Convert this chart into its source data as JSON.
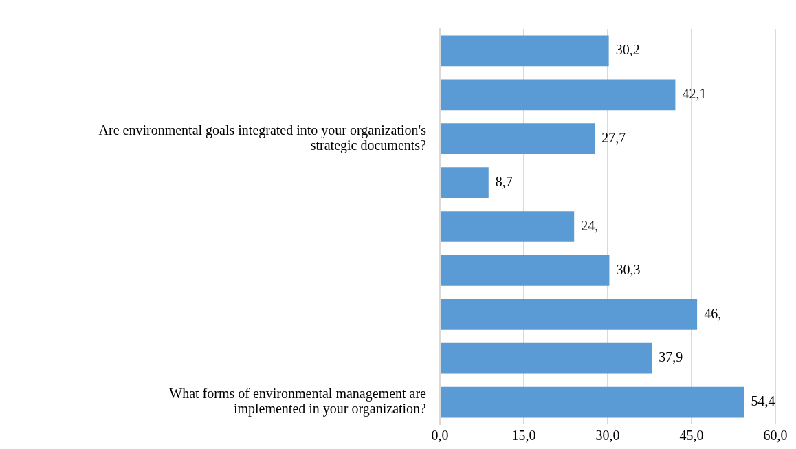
{
  "chart_data": {
    "type": "bar",
    "orientation": "horizontal",
    "categories": [
      null,
      null,
      "Are environmental goals integrated into your organization's strategic documents?",
      null,
      null,
      null,
      null,
      null,
      "What forms of environmental management are implemented in your organization?"
    ],
    "values": [
      30.2,
      42.1,
      27.7,
      8.7,
      24,
      30.3,
      46,
      37.9,
      54.4
    ],
    "value_labels": [
      "30,2",
      "42,1",
      "27,7",
      "8,7",
      "24,",
      "30,3",
      "46,",
      "37,9",
      "54,4"
    ],
    "color": "#5b9bd5",
    "xlim": [
      0,
      60
    ],
    "xticks": [
      {
        "value": 0,
        "label": "0,0"
      },
      {
        "value": 15,
        "label": "15,0"
      },
      {
        "value": 30,
        "label": "30,0"
      },
      {
        "value": 45,
        "label": "45,0"
      },
      {
        "value": 60,
        "label": "60,0"
      }
    ],
    "grid": "x",
    "legend": false
  }
}
